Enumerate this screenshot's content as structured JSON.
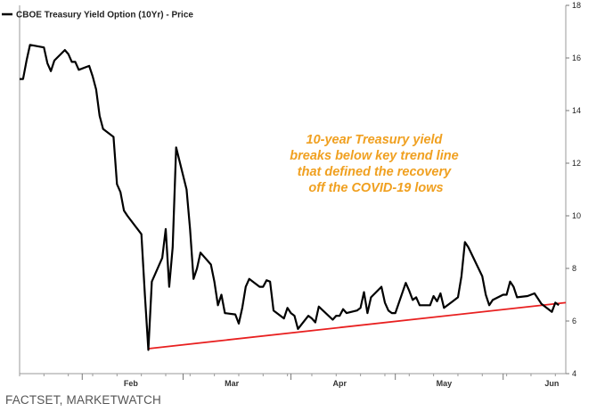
{
  "source_credit": "FACTSET, MARKETWATCH",
  "colors": {
    "price_line": "#000000",
    "trend_line": "#e82020",
    "annotation": "#f0a020",
    "axis": "#999999"
  },
  "chart_data": {
    "type": "line",
    "legend": "CBOE Treasury Yield Option (10Yr) - Price",
    "legend_position": "top-left",
    "annotation": [
      "10-year Treasury yield",
      "breaks below key trend line",
      "that defined the recovery",
      "off the COVID-19 lows"
    ],
    "ylim": [
      4,
      18
    ],
    "yticks": [
      4,
      6,
      8,
      10,
      12,
      14,
      16,
      18
    ],
    "y_axis_side": "right",
    "grid": false,
    "x_range": [
      "2020-01-14",
      "2020-06-19"
    ],
    "month_labels": [
      {
        "label": "Feb",
        "date": "2020-02-15"
      },
      {
        "label": "Mar",
        "date": "2020-03-15"
      },
      {
        "label": "Apr",
        "date": "2020-04-15"
      },
      {
        "label": "May",
        "date": "2020-05-15"
      },
      {
        "label": "Jun",
        "date": "2020-06-15"
      }
    ],
    "month_boundaries": [
      "2020-02-01",
      "2020-03-01",
      "2020-04-01",
      "2020-05-01",
      "2020-06-01"
    ],
    "series": [
      {
        "name": "CBOE Treasury Yield Option (10Yr) - Price",
        "x": [
          "2020-01-14",
          "2020-01-15",
          "2020-01-16",
          "2020-01-17",
          "2020-01-21",
          "2020-01-22",
          "2020-01-23",
          "2020-01-24",
          "2020-01-27",
          "2020-01-28",
          "2020-01-29",
          "2020-01-30",
          "2020-01-31",
          "2020-02-03",
          "2020-02-04",
          "2020-02-05",
          "2020-02-06",
          "2020-02-07",
          "2020-02-10",
          "2020-02-11",
          "2020-02-12",
          "2020-02-13",
          "2020-02-14",
          "2020-02-18",
          "2020-02-19",
          "2020-02-20",
          "2020-02-21",
          "2020-02-24",
          "2020-02-25",
          "2020-02-26",
          "2020-02-27",
          "2020-02-28",
          "2020-03-02",
          "2020-03-03",
          "2020-03-04",
          "2020-03-05",
          "2020-03-06",
          "2020-03-09",
          "2020-03-10",
          "2020-03-11",
          "2020-03-12",
          "2020-03-13",
          "2020-03-16",
          "2020-03-17",
          "2020-03-18",
          "2020-03-19",
          "2020-03-20",
          "2020-03-23",
          "2020-03-24",
          "2020-03-25",
          "2020-03-26",
          "2020-03-27",
          "2020-03-30",
          "2020-03-31",
          "2020-04-01",
          "2020-04-02",
          "2020-04-03",
          "2020-04-06",
          "2020-04-07",
          "2020-04-08",
          "2020-04-09",
          "2020-04-13",
          "2020-04-14",
          "2020-04-15",
          "2020-04-16",
          "2020-04-17",
          "2020-04-20",
          "2020-04-21",
          "2020-04-22",
          "2020-04-23",
          "2020-04-24",
          "2020-04-27",
          "2020-04-28",
          "2020-04-29",
          "2020-04-30",
          "2020-05-01",
          "2020-05-04",
          "2020-05-05",
          "2020-05-06",
          "2020-05-07",
          "2020-05-08",
          "2020-05-11",
          "2020-05-12",
          "2020-05-13",
          "2020-05-14",
          "2020-05-15",
          "2020-05-18",
          "2020-05-19",
          "2020-05-20",
          "2020-05-21",
          "2020-05-22",
          "2020-05-26",
          "2020-05-27",
          "2020-05-28",
          "2020-05-29",
          "2020-06-01",
          "2020-06-02",
          "2020-06-03",
          "2020-06-04",
          "2020-06-05",
          "2020-06-08",
          "2020-06-09",
          "2020-06-10",
          "2020-06-11",
          "2020-06-12",
          "2020-06-15",
          "2020-06-16",
          "2020-06-17"
        ],
        "values": [
          15.2,
          15.2,
          15.9,
          16.5,
          16.4,
          15.8,
          15.5,
          15.9,
          16.3,
          16.15,
          15.85,
          15.85,
          15.55,
          15.7,
          15.3,
          14.8,
          13.8,
          13.3,
          13.0,
          11.2,
          10.9,
          10.2,
          10.0,
          9.3,
          7.0,
          4.9,
          7.5,
          8.4,
          9.5,
          7.3,
          8.8,
          12.6,
          11.0,
          9.5,
          7.6,
          8.0,
          8.6,
          8.15,
          7.5,
          6.6,
          7.0,
          6.3,
          6.25,
          5.9,
          6.5,
          7.3,
          7.6,
          7.3,
          7.3,
          7.55,
          7.5,
          6.4,
          6.1,
          6.5,
          6.3,
          6.2,
          5.7,
          6.2,
          6.1,
          5.95,
          6.55,
          6.05,
          6.2,
          6.2,
          6.45,
          6.3,
          6.4,
          6.5,
          7.1,
          6.3,
          6.9,
          7.3,
          6.7,
          6.4,
          6.3,
          6.3,
          7.45,
          7.15,
          6.8,
          6.9,
          6.6,
          6.6,
          6.95,
          6.75,
          7.05,
          6.5,
          6.8,
          6.9,
          7.7,
          9.0,
          8.8,
          7.7,
          7.0,
          6.6,
          6.8,
          7.0,
          7.0,
          7.5,
          7.3,
          6.9,
          6.95,
          7.0,
          7.05,
          6.85,
          6.65,
          6.35,
          6.7,
          6.6
        ]
      }
    ],
    "trend_line": {
      "x": [
        "2020-02-20",
        "2020-06-19"
      ],
      "y": [
        4.95,
        6.7
      ]
    }
  }
}
